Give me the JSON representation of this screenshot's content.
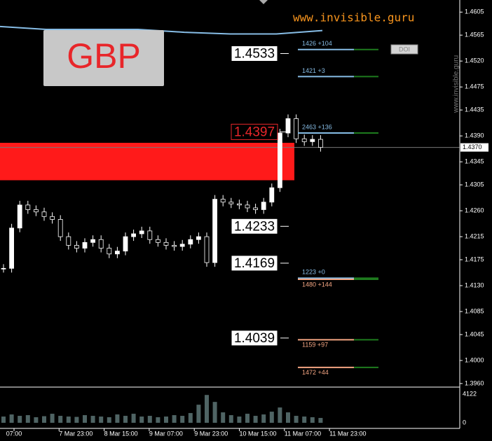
{
  "chart_data": {
    "type": "candlestick",
    "watermark": "www.invisible.guru",
    "side_watermark": "www.invisible.guru",
    "symbol": "GBP",
    "button": "DOI",
    "ylim": [
      1.3955,
      1.4626
    ],
    "yticks": [
      1.4605,
      1.4565,
      {
        "value": 1.452,
        "label": "1.4520"
      },
      1.4475,
      1.4435,
      {
        "value": 1.439,
        "label": "1.4390"
      },
      1.4345,
      1.4305,
      {
        "value": 1.426,
        "label": "1.4260"
      },
      1.4215,
      1.4175,
      {
        "value": 1.413,
        "label": "1.4130"
      },
      1.4085,
      1.4045,
      {
        "value": 1.4,
        "label": "1.4000"
      },
      {
        "value": 1.396,
        "label": "1.3960"
      }
    ],
    "current_price": {
      "value": 1.437,
      "label": "1.4370"
    },
    "closes": [
      1.416,
      1.423,
      1.427,
      1.4262,
      1.4258,
      1.425,
      1.4245,
      1.4215,
      1.42,
      1.4195,
      1.4205,
      1.421,
      1.4195,
      1.4185,
      1.419,
      1.4215,
      1.422,
      1.4225,
      1.421,
      1.4205,
      1.42,
      1.4198,
      1.4202,
      1.421,
      1.4215,
      1.417,
      1.428,
      1.4275,
      1.4272,
      1.427,
      1.4265,
      1.4262,
      1.4275,
      1.43,
      1.4395,
      1.442,
      1.4385,
      1.438,
      1.4384,
      1.437
    ],
    "volumes": [
      900,
      1200,
      1000,
      1100,
      800,
      950,
      1300,
      1000,
      900,
      850,
      1100,
      1000,
      900,
      800,
      1200,
      1000,
      1300,
      900,
      1000,
      800,
      900,
      1100,
      1000,
      1400,
      2600,
      4000,
      3000,
      1500,
      1100,
      900,
      1300,
      1000,
      1200,
      1600,
      2200,
      1500,
      1000,
      900,
      800,
      700
    ],
    "vlim": [
      0,
      4122
    ],
    "vticks": [
      4122,
      0
    ],
    "ma": [
      1.458,
      1.4575,
      1.4575,
      1.4575,
      1.457,
      1.4567,
      1.4567,
      1.4573
    ],
    "ma_color": "#87bde6",
    "levels": [
      {
        "value": 1.4533,
        "color": "#ffffff",
        "text_color": "#000000"
      },
      {
        "value": 1.4397,
        "color": "#000000",
        "text_color": "#e8262a"
      },
      {
        "value": 1.4233,
        "color": "#ffffff",
        "text_color": "#000000"
      },
      {
        "value": 1.4169,
        "color": "#ffffff",
        "text_color": "#000000"
      },
      {
        "value": 1.4039,
        "color": "#ffffff",
        "text_color": "#000000"
      }
    ],
    "zone": [
      1.4378,
      1.4313
    ],
    "zone_color": "#ff1a1a",
    "orders": [
      {
        "label": "1426 +104",
        "price": 1.454,
        "color": "#87bde6",
        "placement": "above"
      },
      {
        "label": "1421 +3",
        "price": 1.4493,
        "color": "#87bde6",
        "placement": "above"
      },
      {
        "label": "2463 +136",
        "price": 1.4395,
        "color": "#87bde6",
        "placement": "above"
      },
      {
        "label": "1223 +0",
        "price": 1.4143,
        "color": "#87bde6",
        "placement": "above"
      },
      {
        "label": "1480 +144",
        "price": 1.4141,
        "color": "#f4a582",
        "placement": "below"
      },
      {
        "label": "1159 +97",
        "price": 1.4036,
        "color": "#f4a582",
        "placement": "below"
      },
      {
        "label": "1472 +44",
        "price": 1.3988,
        "color": "#f4a582",
        "placement": "below"
      }
    ],
    "x_labels": [
      "07:00",
      "7 Mar 23:00",
      "8 Mar 15:00",
      "9 Mar 07:00",
      "9 Mar 23:00",
      "10 Mar 15:00",
      "11 Mar 07:00",
      "11 Mar 23:00"
    ]
  }
}
